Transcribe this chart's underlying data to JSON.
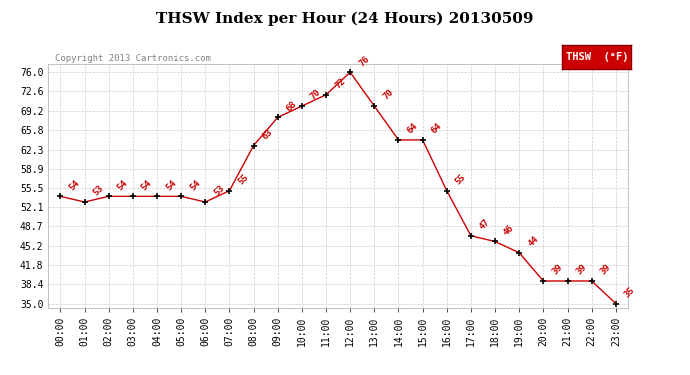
{
  "title": "THSW Index per Hour (24 Hours) 20130509",
  "copyright": "Copyright 2013 Cartronics.com",
  "legend_label": "THSW  (°F)",
  "hours": [
    0,
    1,
    2,
    3,
    4,
    5,
    6,
    7,
    8,
    9,
    10,
    11,
    12,
    13,
    14,
    15,
    16,
    17,
    18,
    19,
    20,
    21,
    22,
    23
  ],
  "values": [
    54,
    53,
    54,
    54,
    54,
    54,
    53,
    55,
    63,
    68,
    70,
    72,
    76,
    70,
    64,
    64,
    55,
    47,
    46,
    44,
    39,
    39,
    39,
    35
  ],
  "x_labels": [
    "00:00",
    "01:00",
    "02:00",
    "03:00",
    "04:00",
    "05:00",
    "06:00",
    "07:00",
    "08:00",
    "09:00",
    "10:00",
    "11:00",
    "12:00",
    "13:00",
    "14:00",
    "15:00",
    "16:00",
    "17:00",
    "18:00",
    "19:00",
    "20:00",
    "21:00",
    "22:00",
    "23:00"
  ],
  "y_ticks": [
    35.0,
    38.4,
    41.8,
    45.2,
    48.7,
    52.1,
    55.5,
    58.9,
    62.3,
    65.8,
    69.2,
    72.6,
    76.0
  ],
  "ylim": [
    34.3,
    77.5
  ],
  "xlim": [
    -0.5,
    23.5
  ],
  "line_color": "#cc0000",
  "marker_color": "#000000",
  "label_color": "#cc0000",
  "background_color": "#ffffff",
  "grid_color": "#cccccc",
  "title_fontsize": 11,
  "copyright_fontsize": 6.5,
  "label_fontsize": 6.5,
  "tick_fontsize": 7,
  "legend_bg": "#cc0000",
  "legend_fg": "#ffffff",
  "legend_fontsize": 7.5
}
